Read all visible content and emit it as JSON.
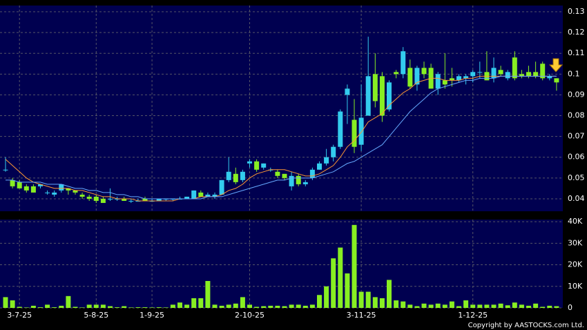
{
  "chart_data": {
    "type": "candlestick",
    "categories": [
      null,
      null,
      "3-7-25",
      null,
      null,
      null,
      null,
      null,
      null,
      null,
      null,
      null,
      null,
      "5-8-25",
      null,
      null,
      null,
      null,
      null,
      null,
      null,
      "1-9-25",
      null,
      null,
      null,
      null,
      null,
      null,
      null,
      null,
      null,
      null,
      null,
      null,
      null,
      "2-10-25",
      null,
      null,
      null,
      null,
      null,
      null,
      null,
      null,
      null,
      null,
      null,
      null,
      null,
      null,
      null,
      "3-11-25",
      null,
      null,
      null,
      null,
      null,
      null,
      null,
      null,
      null,
      null,
      null,
      null,
      null,
      null,
      null,
      "1-12-25",
      null,
      null,
      null,
      null,
      null,
      null,
      null,
      null,
      null,
      null,
      null,
      null
    ],
    "ohlc": [
      [
        0.054,
        0.06,
        0.053,
        0.054
      ],
      [
        0.049,
        0.05,
        0.045,
        0.046
      ],
      [
        0.048,
        0.049,
        0.045,
        0.045
      ],
      [
        0.046,
        0.047,
        0.043,
        0.044
      ],
      [
        0.046,
        0.047,
        0.043,
        0.043
      ],
      [
        0.046,
        0.047,
        0.045,
        0.047
      ],
      [
        0.043,
        0.044,
        0.042,
        0.043
      ],
      [
        0.042,
        0.044,
        0.041,
        0.043
      ],
      [
        0.044,
        0.047,
        0.043,
        0.047
      ],
      [
        0.045,
        0.045,
        0.042,
        0.044
      ],
      [
        0.044,
        0.044,
        0.042,
        0.043
      ],
      [
        0.042,
        0.043,
        0.04,
        0.041
      ],
      [
        0.041,
        0.042,
        0.039,
        0.04
      ],
      [
        0.041,
        0.042,
        0.038,
        0.039
      ],
      [
        0.04,
        0.041,
        0.038,
        0.038
      ],
      [
        0.04,
        0.045,
        0.039,
        0.04
      ],
      [
        0.04,
        0.041,
        0.039,
        0.04
      ],
      [
        0.04,
        0.041,
        0.039,
        0.039
      ],
      [
        0.039,
        0.04,
        0.038,
        0.039
      ],
      [
        0.039,
        0.04,
        0.039,
        0.039
      ],
      [
        0.04,
        0.041,
        0.039,
        0.039
      ],
      [
        0.039,
        0.04,
        0.039,
        0.039
      ],
      [
        0.039,
        0.04,
        0.039,
        0.04
      ],
      [
        0.04,
        0.04,
        0.039,
        0.04
      ],
      [
        0.04,
        0.04,
        0.039,
        0.04
      ],
      [
        0.04,
        0.041,
        0.04,
        0.04
      ],
      [
        0.04,
        0.041,
        0.04,
        0.041
      ],
      [
        0.04,
        0.044,
        0.04,
        0.044
      ],
      [
        0.043,
        0.044,
        0.041,
        0.041
      ],
      [
        0.041,
        0.043,
        0.041,
        0.042
      ],
      [
        0.041,
        0.043,
        0.04,
        0.042
      ],
      [
        0.042,
        0.049,
        0.042,
        0.049
      ],
      [
        0.049,
        0.06,
        0.048,
        0.053
      ],
      [
        0.052,
        0.055,
        0.047,
        0.048
      ],
      [
        0.049,
        0.054,
        0.048,
        0.053
      ],
      [
        0.057,
        0.059,
        0.055,
        0.058
      ],
      [
        0.058,
        0.059,
        0.053,
        0.054
      ],
      [
        0.055,
        0.057,
        0.054,
        0.057
      ],
      [
        0.054,
        0.055,
        0.053,
        0.054
      ],
      [
        0.053,
        0.054,
        0.05,
        0.051
      ],
      [
        0.052,
        0.052,
        0.049,
        0.05
      ],
      [
        0.046,
        0.053,
        0.044,
        0.051
      ],
      [
        0.051,
        0.052,
        0.046,
        0.047
      ],
      [
        0.047,
        0.049,
        0.046,
        0.048
      ],
      [
        0.05,
        0.055,
        0.049,
        0.054
      ],
      [
        0.054,
        0.058,
        0.054,
        0.057
      ],
      [
        0.057,
        0.064,
        0.056,
        0.06
      ],
      [
        0.06,
        0.066,
        0.058,
        0.065
      ],
      [
        0.065,
        0.083,
        0.064,
        0.082
      ],
      [
        0.09,
        0.095,
        0.076,
        0.093
      ],
      [
        0.078,
        0.088,
        0.062,
        0.065
      ],
      [
        0.066,
        0.095,
        0.063,
        0.079
      ],
      [
        0.08,
        0.118,
        0.08,
        0.099
      ],
      [
        0.1,
        0.11,
        0.084,
        0.087
      ],
      [
        0.099,
        0.101,
        0.077,
        0.08
      ],
      [
        0.083,
        0.097,
        0.082,
        0.096
      ],
      [
        0.101,
        0.102,
        0.098,
        0.1
      ],
      [
        0.1,
        0.113,
        0.098,
        0.111
      ],
      [
        0.103,
        0.107,
        0.093,
        0.094
      ],
      [
        0.095,
        0.104,
        0.092,
        0.103
      ],
      [
        0.103,
        0.106,
        0.098,
        0.1
      ],
      [
        0.103,
        0.105,
        0.093,
        0.093
      ],
      [
        0.093,
        0.101,
        0.09,
        0.1
      ],
      [
        0.097,
        0.11,
        0.093,
        0.095
      ],
      [
        0.098,
        0.103,
        0.094,
        0.097
      ],
      [
        0.097,
        0.1,
        0.096,
        0.099
      ],
      [
        0.098,
        0.1,
        0.095,
        0.099
      ],
      [
        0.099,
        0.102,
        0.096,
        0.101
      ],
      [
        0.101,
        0.106,
        0.098,
        0.101
      ],
      [
        0.101,
        0.111,
        0.097,
        0.097
      ],
      [
        0.098,
        0.108,
        0.096,
        0.103
      ],
      [
        0.102,
        0.104,
        0.099,
        0.1
      ],
      [
        0.098,
        0.102,
        0.097,
        0.101
      ],
      [
        0.108,
        0.111,
        0.097,
        0.098
      ],
      [
        0.1,
        0.102,
        0.098,
        0.099
      ],
      [
        0.101,
        0.104,
        0.098,
        0.099
      ],
      [
        0.101,
        0.106,
        0.098,
        0.099
      ],
      [
        0.105,
        0.106,
        0.097,
        0.098
      ],
      [
        0.098,
        0.1,
        0.097,
        0.099
      ],
      [
        0.098,
        0.098,
        0.092,
        0.096
      ]
    ],
    "up_color": "#33ccee",
    "down_color": "#88ee22",
    "series": [
      {
        "color": "#ff9933",
        "values": [
          0.059,
          0.056,
          0.053,
          0.05,
          0.048,
          0.047,
          0.046,
          0.045,
          0.045,
          0.045,
          0.044,
          0.044,
          0.043,
          0.042,
          0.041,
          0.041,
          0.04,
          0.04,
          0.04,
          0.039,
          0.039,
          0.039,
          0.039,
          0.039,
          0.039,
          0.04,
          0.04,
          0.04,
          0.041,
          0.041,
          0.041,
          0.042,
          0.044,
          0.045,
          0.047,
          0.05,
          0.052,
          0.053,
          0.054,
          0.054,
          0.054,
          0.053,
          0.052,
          0.051,
          0.051,
          0.052,
          0.054,
          0.056,
          0.06,
          0.065,
          0.068,
          0.072,
          0.077,
          0.079,
          0.081,
          0.085,
          0.088,
          0.091,
          0.093,
          0.096,
          0.097,
          0.098,
          0.098,
          0.097,
          0.097,
          0.097,
          0.098,
          0.098,
          0.099,
          0.099,
          0.099,
          0.099,
          0.099,
          0.099,
          0.099,
          0.099,
          0.099,
          0.099,
          0.099,
          0.099
        ]
      },
      {
        "color": "#66aaff",
        "values": [
          0.049,
          0.049,
          0.048,
          0.048,
          0.048,
          0.048,
          0.047,
          0.047,
          0.047,
          0.046,
          0.045,
          0.045,
          0.044,
          0.044,
          0.043,
          0.043,
          0.042,
          0.042,
          0.041,
          0.041,
          0.04,
          0.04,
          0.04,
          0.04,
          0.04,
          0.04,
          0.04,
          0.04,
          0.04,
          0.041,
          0.041,
          0.041,
          0.042,
          0.043,
          0.044,
          0.045,
          0.046,
          0.047,
          0.048,
          0.049,
          0.049,
          0.05,
          0.05,
          0.05,
          0.05,
          0.051,
          0.052,
          0.053,
          0.055,
          0.057,
          0.058,
          0.06,
          0.062,
          0.064,
          0.066,
          0.07,
          0.074,
          0.078,
          0.082,
          0.085,
          0.088,
          0.091,
          0.093,
          0.094,
          0.095,
          0.096,
          0.097,
          0.097,
          0.098,
          0.098,
          0.098,
          0.099,
          0.099,
          0.099,
          0.099,
          0.099,
          0.099,
          0.099,
          0.099,
          0.099
        ]
      }
    ],
    "ylim": [
      0.034,
      0.133
    ],
    "yticks": [
      0.04,
      0.05,
      0.06,
      0.07,
      0.08,
      0.09,
      0.1,
      0.11,
      0.12,
      0.13
    ],
    "volume": [
      5000,
      3500,
      500,
      200,
      1000,
      300,
      1500,
      300,
      1000,
      5500,
      500,
      200,
      1500,
      1500,
      1500,
      800,
      300,
      800,
      200,
      300,
      300,
      200,
      300,
      200,
      1500,
      2500,
      1500,
      4500,
      4500,
      12500,
      1500,
      1000,
      1500,
      2000,
      5000,
      1500,
      500,
      800,
      1000,
      1000,
      800,
      1500,
      1500,
      1000,
      1500,
      6000,
      10000,
      23000,
      28000,
      16000,
      38500,
      7500,
      7500,
      5000,
      4500,
      13000,
      3500,
      3000,
      1500,
      800,
      2000,
      1500,
      2000,
      1500,
      3000,
      800,
      3500,
      1500,
      1500,
      1500,
      1500,
      2000,
      1200,
      2500,
      1500,
      1000,
      2000,
      500,
      1000,
      800
    ],
    "volume_color": "#88ee22",
    "y2lim": [
      0,
      41000
    ],
    "y2ticks": [
      {
        "value": 0,
        "label": "0"
      },
      {
        "value": 10000,
        "label": "10K"
      },
      {
        "value": 20000,
        "label": "20K"
      },
      {
        "value": 30000,
        "label": "30K"
      },
      {
        "value": 40000,
        "label": "40K"
      }
    ],
    "grid": true,
    "copyright": "Copyright by AASTOCKS.com Ltd."
  }
}
